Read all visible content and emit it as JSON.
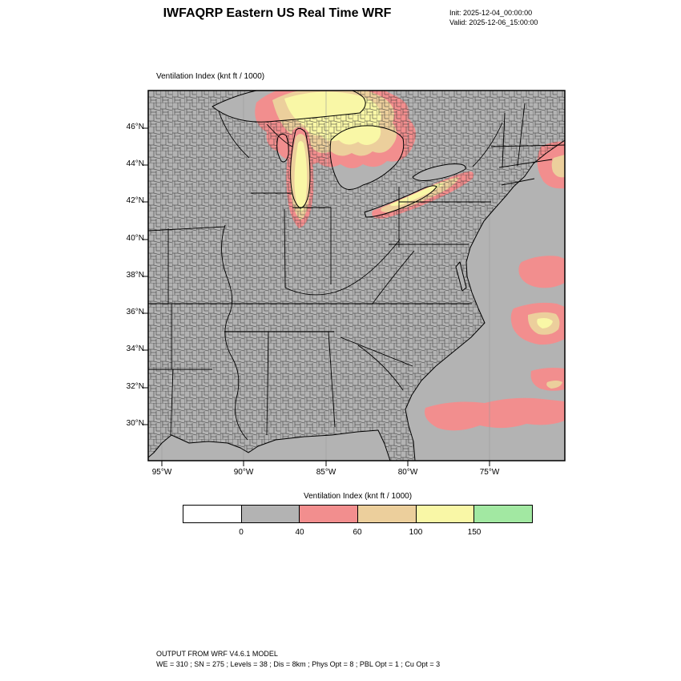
{
  "header": {
    "title": "IWFAQRP Eastern US Real Time WRF",
    "init_label": "Init: 2025-12-04_00:00:00",
    "valid_label": "Valid: 2025-12-06_15:00:00"
  },
  "map": {
    "field_label": "Ventilation Index   (knt ft / 1000)",
    "lat_ticks": [
      "46°N",
      "44°N",
      "42°N",
      "40°N",
      "38°N",
      "36°N",
      "34°N",
      "32°N",
      "30°N"
    ],
    "lon_ticks": [
      "95°W",
      "90°W",
      "85°W",
      "80°W",
      "75°W"
    ],
    "background_color": "#b3b3b3"
  },
  "colorbar": {
    "title": "Ventilation Index  (knt ft / 1000)",
    "tick_labels": [
      "0",
      "40",
      "60",
      "100",
      "150"
    ],
    "colors": [
      "#ffffff",
      "#b3b3b3",
      "#f28e8e",
      "#eccf9c",
      "#f9f7a6",
      "#a2e8a2"
    ]
  },
  "footer": {
    "line1": "OUTPUT FROM WRF V4.6.1 MODEL",
    "line2": "WE = 310 ; SN = 275 ; Levels = 38 ; Dis = 8km ; Phys Opt = 8 ; PBL Opt = 1 ; Cu Opt = 3"
  }
}
